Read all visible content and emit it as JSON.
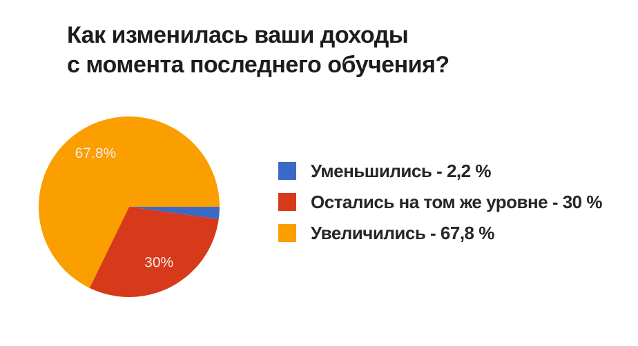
{
  "header": {
    "title": "Как изменилась ваши доходы\nс момента последнего обучения?"
  },
  "chart_data": {
    "type": "pie",
    "title": "Как изменилась ваши доходы с момента последнего обучения?",
    "start_angle_deg": 0,
    "direction": "clockwise",
    "legend_position": "right",
    "inside_label_color": "#F5EDE6",
    "slices": [
      {
        "name": "Уменьшились",
        "value": 2.2,
        "color": "#3C69C8",
        "inside_label": ""
      },
      {
        "name": "Остались на том же уровне",
        "value": 30,
        "color": "#D63A1A",
        "inside_label": "30%"
      },
      {
        "name": "Увеличились",
        "value": 67.8,
        "color": "#FB9E00",
        "inside_label": "67.8%"
      }
    ]
  },
  "legend": {
    "entries": [
      {
        "text": "Уменьшились - 2,2 %"
      },
      {
        "text": "Остались на том же уровне - 30 %"
      },
      {
        "text": "Увеличились - 67,8 %"
      }
    ]
  }
}
